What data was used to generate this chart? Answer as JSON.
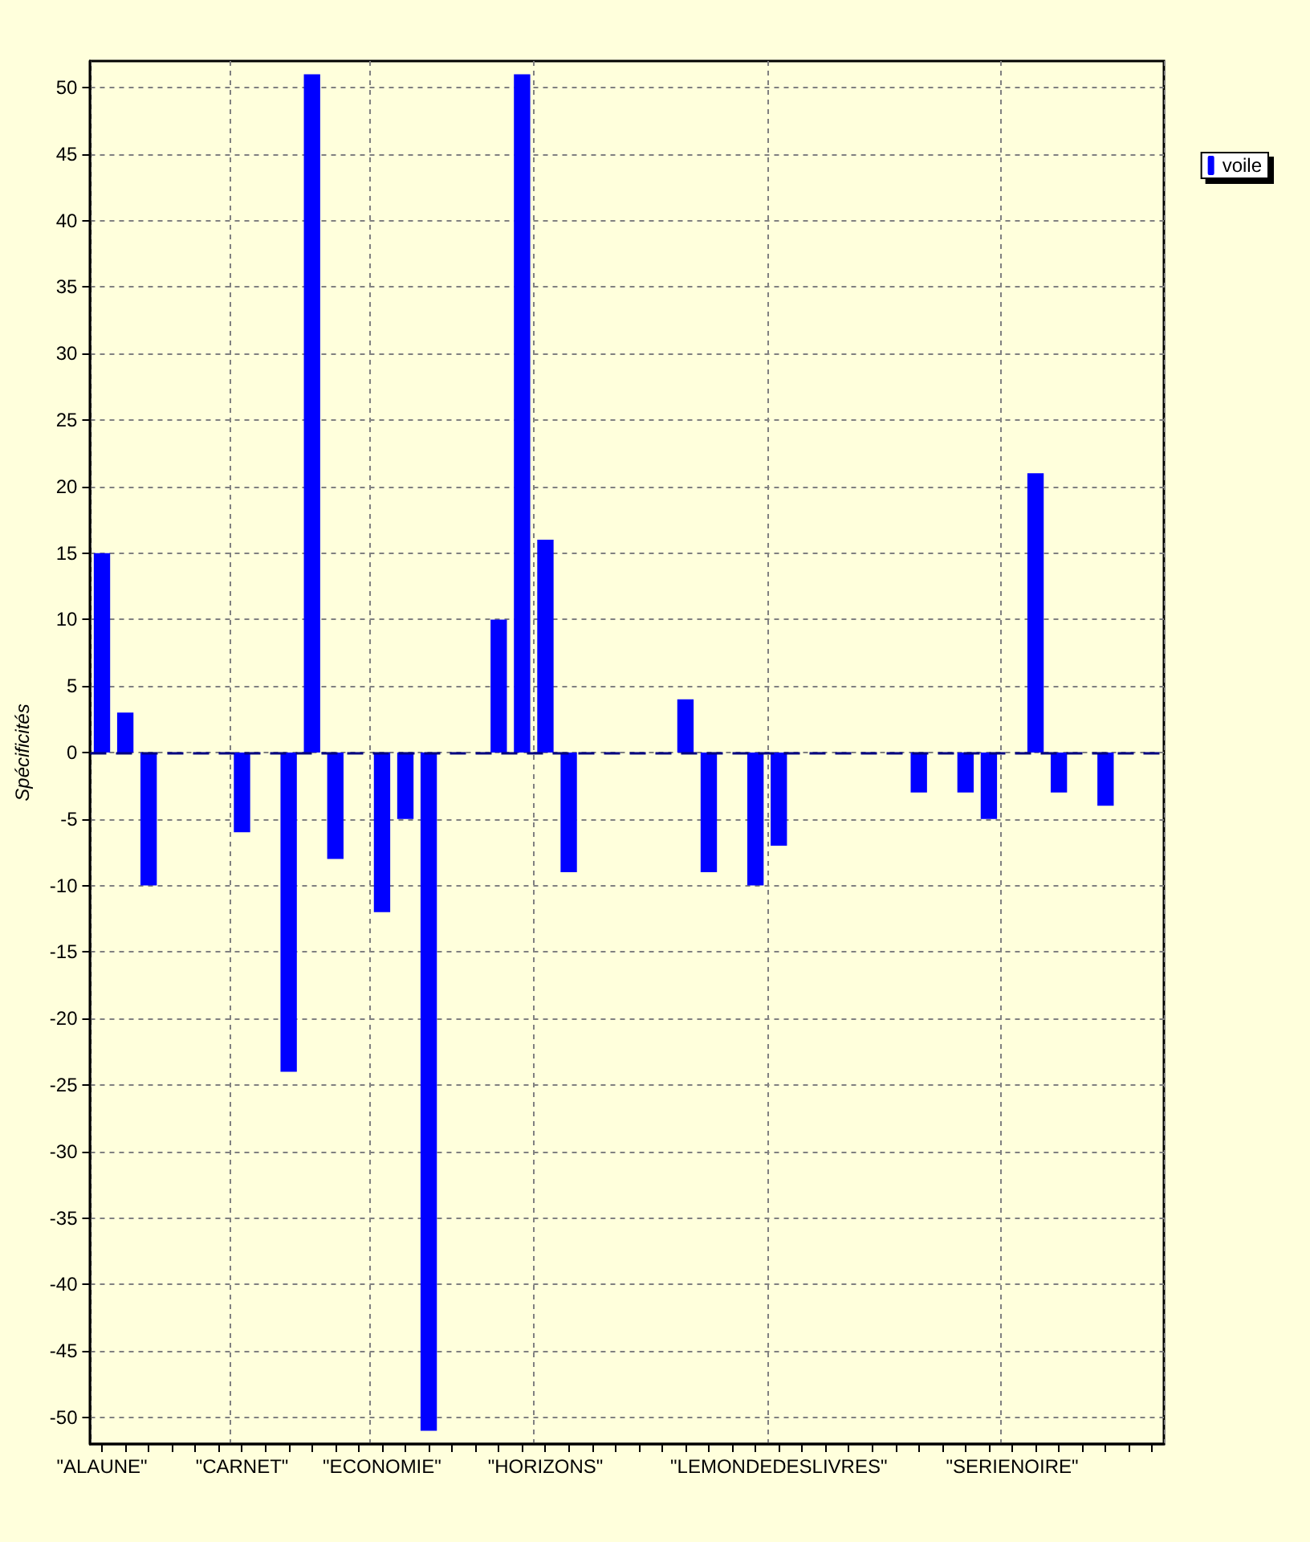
{
  "chart_data": {
    "type": "bar",
    "ylabel": "Spécificités",
    "categories": [
      "\"ALAUNE\"",
      null,
      null,
      null,
      null,
      null,
      "\"CARNET\"",
      null,
      null,
      null,
      null,
      null,
      "\"ECONOMIE\"",
      null,
      null,
      null,
      null,
      null,
      null,
      "\"HORIZONS\"",
      null,
      null,
      null,
      null,
      null,
      null,
      null,
      null,
      null,
      "\"LEMONDEDESLIVRES\"",
      null,
      null,
      null,
      null,
      null,
      null,
      null,
      null,
      null,
      "\"SERIENOIRE\"",
      null,
      null,
      null,
      null,
      null,
      null
    ],
    "series": [
      {
        "name": "voile",
        "color": "#0000ff",
        "values": [
          15,
          3,
          -10,
          0,
          0,
          0,
          -6,
          0,
          -24,
          51,
          -8,
          0,
          -12,
          -5,
          -51,
          0,
          0,
          10,
          51,
          16,
          -9,
          0,
          0,
          0,
          0,
          4,
          -9,
          0,
          -10,
          -7,
          0,
          0,
          0,
          0,
          0,
          -3,
          0,
          -3,
          -5,
          0,
          21,
          -3,
          0,
          -4,
          0,
          0
        ]
      }
    ],
    "ylim": [
      -52,
      52
    ],
    "yticks": [
      -50,
      -45,
      -40,
      -35,
      -30,
      -25,
      -20,
      -15,
      -10,
      -5,
      0,
      5,
      10,
      15,
      20,
      25,
      30,
      35,
      40,
      45,
      50
    ],
    "ref_lines": [
      {
        "axis": "y",
        "value": 0,
        "color": "#000080",
        "line_style": "dashed"
      }
    ],
    "grid": true,
    "legend": "top right"
  }
}
